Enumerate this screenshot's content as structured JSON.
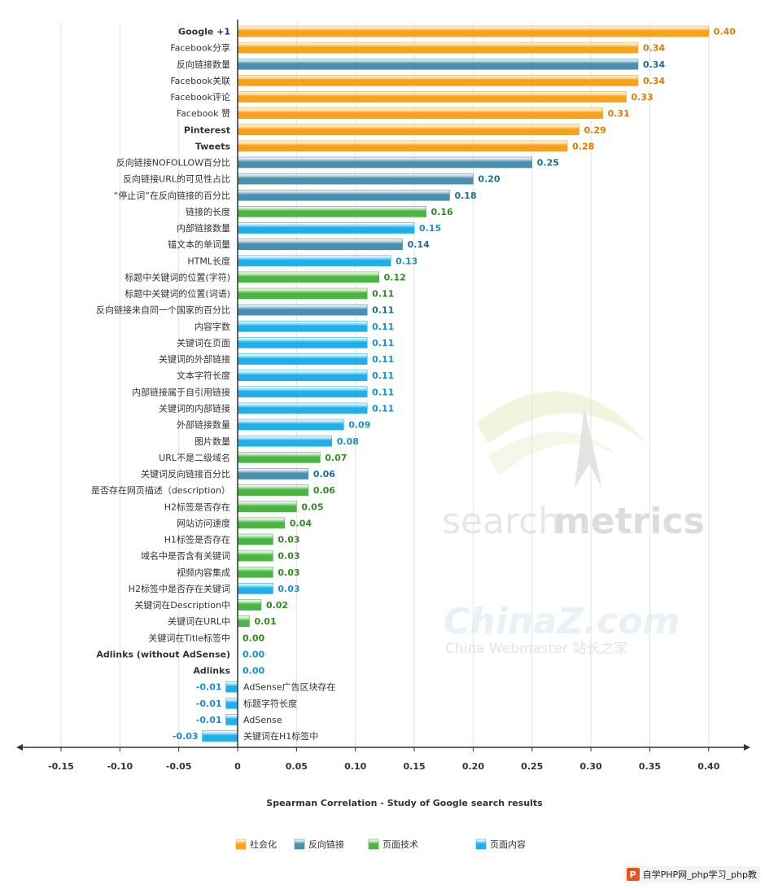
{
  "chart_data": {
    "type": "bar",
    "orientation": "horizontal",
    "title": "",
    "xlabel": "Spearman Correlation - Study of Google search results",
    "ylabel": "",
    "xlim": [
      -0.18,
      0.43
    ],
    "x_ticks": [
      -0.15,
      -0.1,
      -0.05,
      0,
      0.05,
      0.1,
      0.15,
      0.2,
      0.25,
      0.3,
      0.35,
      0.4
    ],
    "x_tick_labels": [
      "-0.15",
      "-0.10",
      "-0.05",
      "0",
      "0.05",
      "0.10",
      "0.15",
      "0.20",
      "0.25",
      "0.30",
      "0.35",
      "0.40"
    ],
    "grid": "vertical",
    "legend_position": "bottom",
    "series": [
      {
        "name": "社会化",
        "color": "#f7a21b"
      },
      {
        "name": "反向链接",
        "color": "#4a8fae"
      },
      {
        "name": "页面技术",
        "color": "#4bb543"
      },
      {
        "name": "页面内容",
        "color": "#1fb0ec"
      }
    ],
    "label_colors": {
      "社会化": "#e07b00",
      "反向链接": "#1a6f96",
      "页面技术": "#2e8b1f",
      "页面内容": "#1a8fd0"
    },
    "bars": [
      {
        "label": "Google +1",
        "value": 0.4,
        "value_label": "0.40",
        "series": "社会化",
        "bold": true
      },
      {
        "label": "Facebook分享",
        "value": 0.34,
        "value_label": "0.34",
        "series": "社会化"
      },
      {
        "label": "反向链接数量",
        "value": 0.34,
        "value_label": "0.34",
        "series": "反向链接"
      },
      {
        "label": "Facebook关联",
        "value": 0.34,
        "value_label": "0.34",
        "series": "社会化"
      },
      {
        "label": "Facebook评论",
        "value": 0.33,
        "value_label": "0.33",
        "series": "社会化"
      },
      {
        "label": "Facebook 赞",
        "value": 0.31,
        "value_label": "0.31",
        "series": "社会化"
      },
      {
        "label": "Pinterest",
        "value": 0.29,
        "value_label": "0.29",
        "series": "社会化",
        "bold": true
      },
      {
        "label": "Tweets",
        "value": 0.28,
        "value_label": "0.28",
        "series": "社会化",
        "bold": true
      },
      {
        "label": "反向链接NOFOLLOW百分比",
        "value": 0.25,
        "value_label": "0.25",
        "series": "反向链接"
      },
      {
        "label": "反向链接URL的可见性占比",
        "value": 0.2,
        "value_label": "0.20",
        "series": "反向链接"
      },
      {
        "label": "“停止词”在反向链接的百分比",
        "value": 0.18,
        "value_label": "0.18",
        "series": "反向链接"
      },
      {
        "label": "链接的长度",
        "value": 0.16,
        "value_label": "0.16",
        "series": "页面技术"
      },
      {
        "label": "内部链接数量",
        "value": 0.15,
        "value_label": "0.15",
        "series": "页面内容"
      },
      {
        "label": "锚文本的单词量",
        "value": 0.14,
        "value_label": "0.14",
        "series": "反向链接"
      },
      {
        "label": "HTML长度",
        "value": 0.13,
        "value_label": "0.13",
        "series": "页面内容"
      },
      {
        "label": "标题中关键词的位置(字符)",
        "value": 0.12,
        "value_label": "0.12",
        "series": "页面技术"
      },
      {
        "label": "标题中关键词的位置(词语)",
        "value": 0.11,
        "value_label": "0.11",
        "series": "页面技术"
      },
      {
        "label": "反向链接来自同一个国家的百分比",
        "value": 0.11,
        "value_label": "0.11",
        "series": "反向链接"
      },
      {
        "label": "内容字数",
        "value": 0.11,
        "value_label": "0.11",
        "series": "页面内容"
      },
      {
        "label": "关键词在页面",
        "value": 0.11,
        "value_label": "0.11",
        "series": "页面内容"
      },
      {
        "label": "关键词的外部链接",
        "value": 0.11,
        "value_label": "0.11",
        "series": "页面内容"
      },
      {
        "label": "文本字符长度",
        "value": 0.11,
        "value_label": "0.11",
        "series": "页面内容"
      },
      {
        "label": "内部链接属于自引用链接",
        "value": 0.11,
        "value_label": "0.11",
        "series": "页面内容"
      },
      {
        "label": "关键词的内部链接",
        "value": 0.11,
        "value_label": "0.11",
        "series": "页面内容"
      },
      {
        "label": "外部链接数量",
        "value": 0.09,
        "value_label": "0.09",
        "series": "页面内容"
      },
      {
        "label": "图片数量",
        "value": 0.08,
        "value_label": "0.08",
        "series": "页面内容"
      },
      {
        "label": "URL不是二级域名",
        "value": 0.07,
        "value_label": "0.07",
        "series": "页面技术"
      },
      {
        "label": "关键词反向链接百分比",
        "value": 0.06,
        "value_label": "0.06",
        "series": "反向链接"
      },
      {
        "label": "是否存在网页描述（description）",
        "value": 0.06,
        "value_label": "0.06",
        "series": "页面技术"
      },
      {
        "label": "H2标签是否存在",
        "value": 0.05,
        "value_label": "0.05",
        "series": "页面技术"
      },
      {
        "label": "网站访问速度",
        "value": 0.04,
        "value_label": "0.04",
        "series": "页面技术"
      },
      {
        "label": "H1标签是否存在",
        "value": 0.03,
        "value_label": "0.03",
        "series": "页面技术"
      },
      {
        "label": "域名中是否含有关键词",
        "value": 0.03,
        "value_label": "0.03",
        "series": "页面技术"
      },
      {
        "label": "视频内容集成",
        "value": 0.03,
        "value_label": "0.03",
        "series": "页面技术"
      },
      {
        "label": "H2标签中是否存在关键词",
        "value": 0.03,
        "value_label": "0.03",
        "series": "页面内容"
      },
      {
        "label": "关键词在Description中",
        "value": 0.02,
        "value_label": "0.02",
        "series": "页面技术"
      },
      {
        "label": "关键词在URL中",
        "value": 0.01,
        "value_label": "0.01",
        "series": "页面技术"
      },
      {
        "label": "关键词在Title标签中",
        "value": 0.0,
        "value_label": "0.00",
        "series": "页面技术"
      },
      {
        "label": "Adlinks (without AdSense)",
        "value": 0.0,
        "value_label": "0.00",
        "series": "页面内容",
        "bold": true
      },
      {
        "label": "Adlinks",
        "value": 0.0,
        "value_label": "0.00",
        "series": "页面内容",
        "bold": true
      },
      {
        "label": "AdSense广告区块存在",
        "value": -0.01,
        "value_label": "-0.01",
        "series": "页面内容"
      },
      {
        "label": "标题字符长度",
        "value": -0.01,
        "value_label": "-0.01",
        "series": "页面内容"
      },
      {
        "label": "AdSense",
        "value": -0.01,
        "value_label": "-0.01",
        "series": "页面内容"
      },
      {
        "label": "关键词在H1标签中",
        "value": -0.03,
        "value_label": "-0.03",
        "series": "页面内容"
      }
    ]
  },
  "watermarks": {
    "searchmetrics_a": "search",
    "searchmetrics_b": "metrics",
    "chinaz": "ChinaZ.com",
    "chinaz_sub": "China Webmaster  站长之家"
  },
  "footer": {
    "logo_letter": "P",
    "text": "自学PHP网_php学习_php教"
  }
}
